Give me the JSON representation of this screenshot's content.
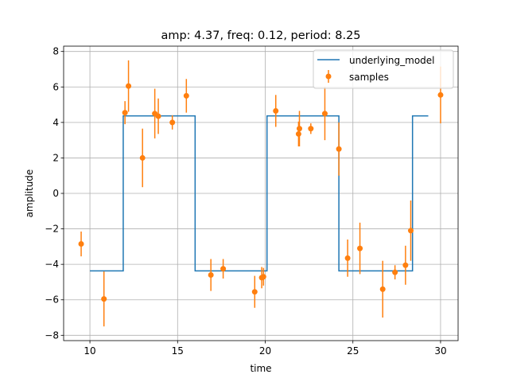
{
  "chart_data": {
    "type": "line",
    "title": "amp: 4.37, freq: 0.12, period: 8.25",
    "xlabel": "time",
    "ylabel": "amplitude",
    "xlim": [
      8.5,
      31.0
    ],
    "ylim": [
      -8.3,
      8.3
    ],
    "xticks": [
      10,
      15,
      20,
      25,
      30
    ],
    "yticks": [
      -8,
      -6,
      -4,
      -2,
      0,
      2,
      4,
      6,
      8
    ],
    "grid": true,
    "legend_position": "top-right",
    "colors": {
      "model": "#1f77b4",
      "samples": "#ff7f0e"
    },
    "series": [
      {
        "name": "underlying_model",
        "kind": "step-line",
        "x": [
          10.0,
          11.9,
          11.9,
          16.0,
          16.0,
          20.1,
          20.1,
          24.2,
          24.2,
          28.4,
          28.4,
          29.3
        ],
        "y": [
          -4.37,
          -4.37,
          4.37,
          4.37,
          -4.37,
          -4.37,
          4.37,
          4.37,
          -4.37,
          -4.37,
          4.37,
          4.37
        ]
      },
      {
        "name": "samples",
        "kind": "errorbar",
        "points": [
          {
            "x": 9.5,
            "y": -2.85,
            "err": 0.7
          },
          {
            "x": 10.8,
            "y": -5.95,
            "err": 1.55
          },
          {
            "x": 12.0,
            "y": 4.55,
            "err": 0.65
          },
          {
            "x": 12.2,
            "y": 6.05,
            "err": 1.45
          },
          {
            "x": 13.0,
            "y": 2.0,
            "err": 1.65
          },
          {
            "x": 13.7,
            "y": 4.5,
            "err": 1.4
          },
          {
            "x": 13.9,
            "y": 4.35,
            "err": 1.0
          },
          {
            "x": 14.7,
            "y": 4.0,
            "err": 0.4
          },
          {
            "x": 15.5,
            "y": 5.5,
            "err": 0.95
          },
          {
            "x": 16.9,
            "y": -4.6,
            "err": 0.9
          },
          {
            "x": 17.6,
            "y": -4.25,
            "err": 0.55
          },
          {
            "x": 19.4,
            "y": -5.55,
            "err": 0.9
          },
          {
            "x": 19.8,
            "y": -4.75,
            "err": 0.6
          },
          {
            "x": 19.9,
            "y": -4.7,
            "err": 0.5
          },
          {
            "x": 20.6,
            "y": 4.65,
            "err": 0.9
          },
          {
            "x": 21.9,
            "y": 3.35,
            "err": 0.7
          },
          {
            "x": 21.95,
            "y": 3.65,
            "err": 1.0
          },
          {
            "x": 22.6,
            "y": 3.65,
            "err": 0.3
          },
          {
            "x": 23.4,
            "y": 4.5,
            "err": 1.5
          },
          {
            "x": 24.2,
            "y": 2.5,
            "err": 1.5
          },
          {
            "x": 24.7,
            "y": -3.65,
            "err": 1.05
          },
          {
            "x": 25.4,
            "y": -3.1,
            "err": 1.45
          },
          {
            "x": 26.7,
            "y": -5.4,
            "err": 1.6
          },
          {
            "x": 27.4,
            "y": -4.45,
            "err": 0.4
          },
          {
            "x": 28.0,
            "y": -4.05,
            "err": 1.1
          },
          {
            "x": 28.3,
            "y": -2.1,
            "err": 1.7
          },
          {
            "x": 30.0,
            "y": 5.55,
            "err": 1.6
          }
        ]
      }
    ]
  }
}
